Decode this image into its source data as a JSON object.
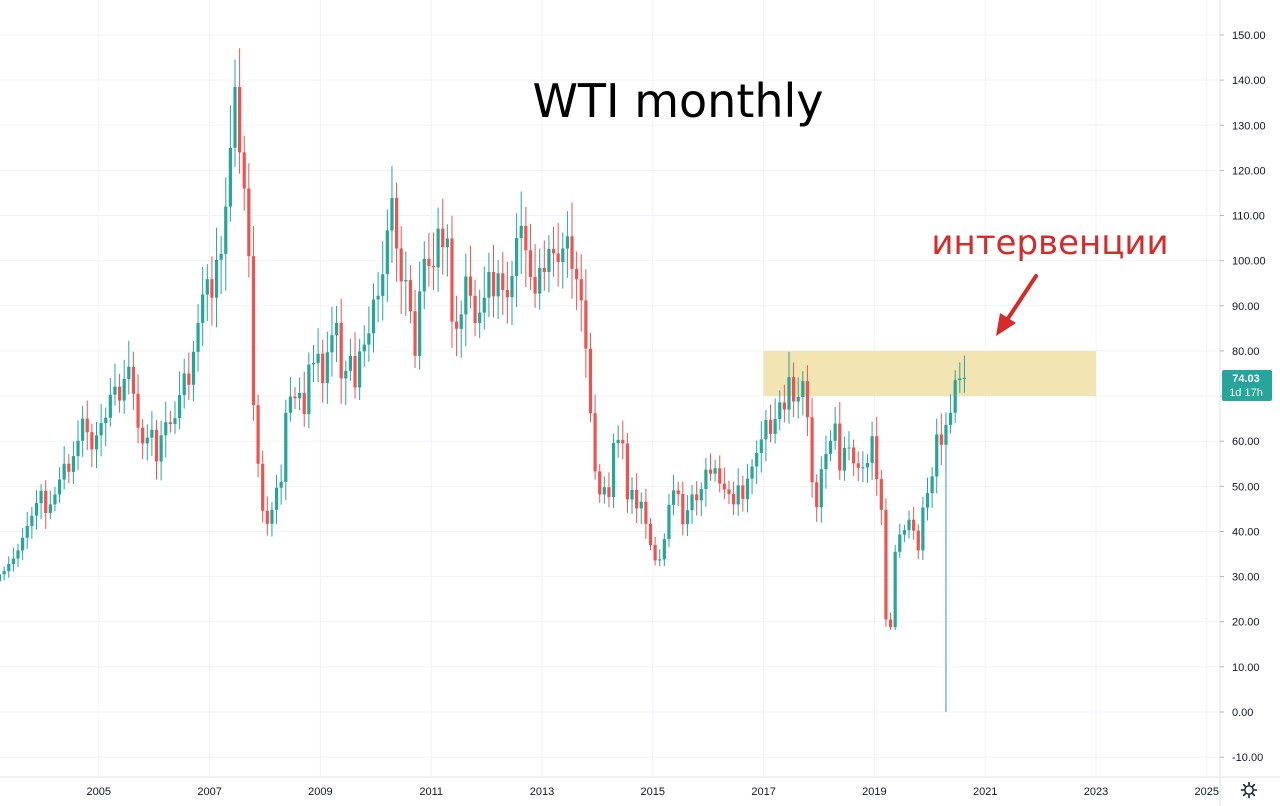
{
  "chart_data": {
    "type": "candlestick",
    "title": "WTI monthly",
    "annotation": {
      "text": "интервенции",
      "color": "#d62b2b"
    },
    "colors": {
      "up": "#26a69a",
      "down": "#ef5350",
      "zone": "#f1dfa6",
      "grid": "#f0f3fa",
      "axis": "#e0e3eb"
    },
    "ylim": [
      -15,
      155
    ],
    "y_ticks": [
      150,
      140,
      130,
      120,
      110,
      100,
      90,
      80,
      70,
      60,
      50,
      40,
      30,
      20,
      10,
      0,
      -10
    ],
    "y_tick_labels": [
      "150.00",
      "140.00",
      "130.00",
      "120.00",
      "110.00",
      "100.00",
      "90.00",
      "80.00",
      "70.00",
      "60.00",
      "50.00",
      "40.00",
      "30.00",
      "20.00",
      "10.00",
      "0.00",
      "-10.00"
    ],
    "x_ticks": [
      "2005",
      "2007",
      "2009",
      "2011",
      "2013",
      "2015",
      "2017",
      "2019",
      "2021",
      "2023",
      "2025"
    ],
    "zone": {
      "x_start": "2017",
      "x_end": "2023",
      "y_low": 70,
      "y_high": 80
    },
    "last_price": {
      "value": "74.03",
      "countdown": "1d 17h"
    },
    "monthly_close": [
      30.2,
      29.0,
      30.5,
      31.2,
      32.8,
      34.0,
      35.8,
      38.6,
      41.2,
      43.5,
      46.3,
      49.0,
      44.1,
      46.0,
      48.2,
      51.5,
      55.0,
      53.2,
      56.7,
      60.1,
      65.0,
      62.0,
      58.2,
      61.3,
      64.0,
      65.2,
      70.3,
      72.1,
      69.0,
      73.8,
      76.5,
      70.5,
      63.0,
      59.5,
      60.8,
      62.5,
      55.5,
      61.3,
      64.2,
      63.8,
      65.1,
      70.2,
      75.0,
      72.5,
      79.8,
      86.2,
      92.5,
      95.9,
      91.8,
      100.2,
      101.5,
      112.0,
      125.0,
      138.5,
      124.0,
      116.0,
      101.0,
      68.0,
      55.0,
      44.6,
      41.7,
      44.8,
      49.7,
      51.0,
      66.3,
      69.9,
      69.5,
      70.7,
      66.0,
      77.0,
      77.3,
      79.4,
      72.9,
      79.7,
      83.5,
      86.2,
      73.9,
      75.6,
      78.9,
      71.9,
      79.9,
      81.4,
      83.9,
      91.4,
      92.2,
      97.0,
      106.7,
      113.9,
      102.7,
      95.4,
      95.7,
      88.8,
      78.9,
      93.2,
      100.4,
      98.8,
      98.5,
      107.1,
      103.0,
      104.9,
      86.5,
      84.9,
      88.1,
      96.5,
      92.2,
      86.2,
      88.5,
      91.8,
      97.5,
      92.1,
      97.2,
      93.5,
      91.9,
      96.6,
      105.0,
      107.7,
      102.3,
      96.4,
      92.7,
      98.4,
      97.5,
      102.6,
      101.6,
      99.7,
      102.7,
      105.4,
      98.2,
      95.9,
      91.2,
      80.5,
      66.2,
      53.3,
      48.2,
      49.8,
      47.6,
      59.6,
      60.3,
      59.5,
      47.1,
      49.2,
      45.1,
      46.6,
      41.7,
      37.0,
      33.6,
      33.8,
      38.3,
      45.9,
      49.1,
      48.3,
      41.6,
      44.7,
      48.2,
      46.9,
      49.4,
      53.7,
      52.8,
      54.0,
      50.6,
      49.3,
      48.3,
      46.0,
      50.2,
      47.2,
      51.7,
      54.4,
      57.4,
      60.4,
      64.7,
      61.6,
      64.9,
      68.6,
      67.0,
      74.2,
      68.8,
      69.8,
      73.3,
      65.3,
      50.9,
      45.4,
      53.8,
      57.2,
      60.1,
      63.9,
      53.5,
      58.5,
      58.6,
      55.1,
      54.1,
      54.2,
      55.2,
      61.1,
      51.6,
      44.8,
      20.5,
      18.8,
      35.5,
      39.3,
      40.3,
      42.6,
      40.2,
      35.8,
      45.3,
      48.5,
      52.2,
      61.5,
      59.2,
      63.6,
      66.3,
      73.5,
      73.9,
      74.03
    ]
  }
}
